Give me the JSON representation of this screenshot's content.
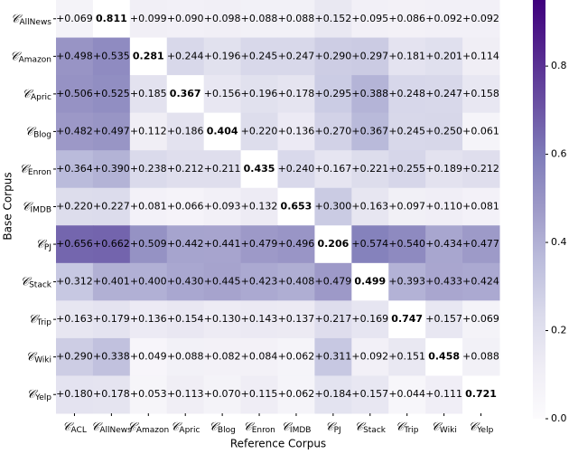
{
  "chart_data": {
    "type": "heatmap",
    "x_label": "Reference Corpus",
    "y_label": "Base Corpus",
    "symbol": "𝒞",
    "columns": [
      "ACL",
      "AllNews",
      "Amazon",
      "Apric",
      "Blog",
      "Enron",
      "IMDB",
      "PJ",
      "Stack",
      "Trip",
      "Wiki",
      "Yelp"
    ],
    "rows": [
      "AllNews",
      "Amazon",
      "Apric",
      "Blog",
      "Enron",
      "IMDB",
      "PJ",
      "Stack",
      "Trip",
      "Wiki",
      "Yelp"
    ],
    "values": [
      [
        0.069,
        0.811,
        0.099,
        0.09,
        0.098,
        0.088,
        0.088,
        0.152,
        0.095,
        0.086,
        0.092,
        0.092
      ],
      [
        0.498,
        0.535,
        0.281,
        0.244,
        0.196,
        0.245,
        0.247,
        0.29,
        0.297,
        0.181,
        0.201,
        0.114
      ],
      [
        0.506,
        0.525,
        0.185,
        0.367,
        0.156,
        0.196,
        0.178,
        0.295,
        0.388,
        0.248,
        0.247,
        0.158
      ],
      [
        0.482,
        0.497,
        0.112,
        0.186,
        0.404,
        0.22,
        0.136,
        0.27,
        0.367,
        0.245,
        0.25,
        0.061
      ],
      [
        0.364,
        0.39,
        0.238,
        0.212,
        0.211,
        0.435,
        0.24,
        0.167,
        0.221,
        0.255,
        0.189,
        0.212
      ],
      [
        0.22,
        0.227,
        0.081,
        0.066,
        0.093,
        0.132,
        0.653,
        0.3,
        0.163,
        0.097,
        0.11,
        0.081
      ],
      [
        0.656,
        0.662,
        0.509,
        0.442,
        0.441,
        0.479,
        0.496,
        0.206,
        0.574,
        0.54,
        0.434,
        0.477
      ],
      [
        0.312,
        0.401,
        0.4,
        0.43,
        0.445,
        0.423,
        0.408,
        0.479,
        0.499,
        0.393,
        0.433,
        0.424
      ],
      [
        0.163,
        0.179,
        0.136,
        0.154,
        0.13,
        0.143,
        0.137,
        0.217,
        0.169,
        0.747,
        0.157,
        0.069
      ],
      [
        0.29,
        0.338,
        0.049,
        0.088,
        0.082,
        0.084,
        0.062,
        0.311,
        0.092,
        0.151,
        0.458,
        0.088
      ],
      [
        0.18,
        0.178,
        0.053,
        0.113,
        0.07,
        0.115,
        0.062,
        0.184,
        0.157,
        0.044,
        0.111,
        0.721
      ]
    ],
    "value_labels": [
      [
        "+0.069",
        "0.811",
        "+0.099",
        "+0.090",
        "+0.098",
        "+0.088",
        "+0.088",
        "+0.152",
        "+0.095",
        "+0.086",
        "+0.092",
        "+0.092"
      ],
      [
        "+0.498",
        "+0.535",
        "0.281",
        "+0.244",
        "+0.196",
        "+0.245",
        "+0.247",
        "+0.290",
        "+0.297",
        "+0.181",
        "+0.201",
        "+0.114"
      ],
      [
        "+0.506",
        "+0.525",
        "+0.185",
        "0.367",
        "+0.156",
        "+0.196",
        "+0.178",
        "+0.295",
        "+0.388",
        "+0.248",
        "+0.247",
        "+0.158"
      ],
      [
        "+0.482",
        "+0.497",
        "+0.112",
        "+0.186",
        "0.404",
        "+0.220",
        "+0.136",
        "+0.270",
        "+0.367",
        "+0.245",
        "+0.250",
        "+0.061"
      ],
      [
        "+0.364",
        "+0.390",
        "+0.238",
        "+0.212",
        "+0.211",
        "0.435",
        "+0.240",
        "+0.167",
        "+0.221",
        "+0.255",
        "+0.189",
        "+0.212"
      ],
      [
        "+0.220",
        "+0.227",
        "+0.081",
        "+0.066",
        "+0.093",
        "+0.132",
        "0.653",
        "+0.300",
        "+0.163",
        "+0.097",
        "+0.110",
        "+0.081"
      ],
      [
        "+0.656",
        "+0.662",
        "+0.509",
        "+0.442",
        "+0.441",
        "+0.479",
        "+0.496",
        "0.206",
        "+0.574",
        "+0.540",
        "+0.434",
        "+0.477"
      ],
      [
        "+0.312",
        "+0.401",
        "+0.400",
        "+0.430",
        "+0.445",
        "+0.423",
        "+0.408",
        "+0.479",
        "0.499",
        "+0.393",
        "+0.433",
        "+0.424"
      ],
      [
        "+0.163",
        "+0.179",
        "+0.136",
        "+0.154",
        "+0.130",
        "+0.143",
        "+0.137",
        "+0.217",
        "+0.169",
        "0.747",
        "+0.157",
        "+0.069"
      ],
      [
        "+0.290",
        "+0.338",
        "+0.049",
        "+0.088",
        "+0.082",
        "+0.084",
        "+0.062",
        "+0.311",
        "+0.092",
        "+0.151",
        "0.458",
        "+0.088"
      ],
      [
        "+0.180",
        "+0.178",
        "+0.053",
        "+0.113",
        "+0.070",
        "+0.115",
        "+0.062",
        "+0.184",
        "+0.157",
        "+0.044",
        "+0.111",
        "0.721"
      ]
    ],
    "mask_diagonal": true,
    "colormap": [
      "#fcfbfd",
      "#efedf5",
      "#dadaeb",
      "#bcbddc",
      "#9e9ac8",
      "#807dba",
      "#6a51a3",
      "#54278f",
      "#3f007d"
    ],
    "clim": [
      0,
      0.95
    ],
    "cticks": [
      {
        "value": 0,
        "label": "0.0"
      },
      0.2,
      0.4,
      0.6,
      0.8
    ]
  }
}
